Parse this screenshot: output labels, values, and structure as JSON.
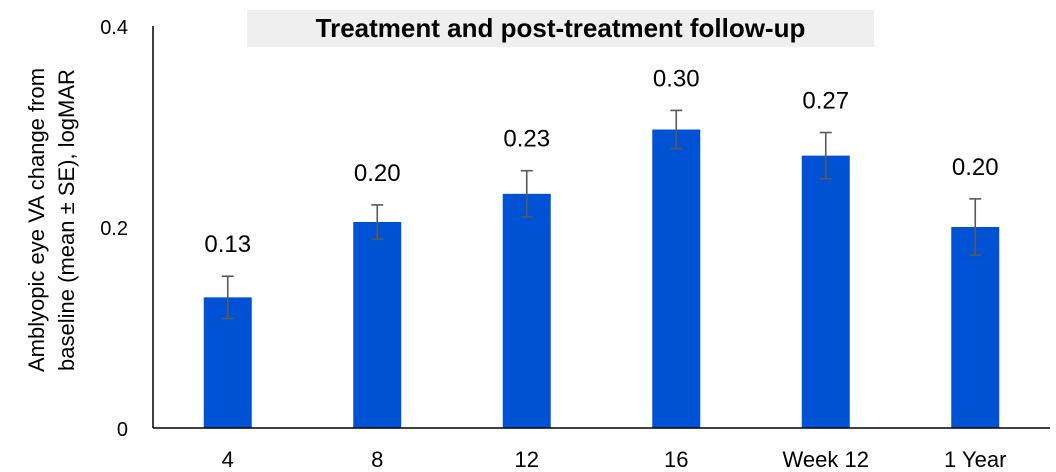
{
  "chart_data": {
    "type": "bar",
    "title": "Treatment and post-treatment follow-up",
    "ylabel_lines": [
      "Amblyopic eye VA change from",
      "baseline (mean ± SE), logMAR"
    ],
    "xlabel": "",
    "categories": [
      "4",
      "8",
      "12",
      "16",
      "Week 12",
      "1 Year"
    ],
    "values": [
      0.13,
      0.205,
      0.233,
      0.297,
      0.271,
      0.2
    ],
    "data_labels": [
      "0.13",
      "0.20",
      "0.23",
      "0.30",
      "0.27",
      "0.20"
    ],
    "error": [
      0.021,
      0.017,
      0.023,
      0.019,
      0.023,
      0.028
    ],
    "ylim": [
      0,
      0.4
    ],
    "yticks": [
      0,
      0.2,
      0.4
    ],
    "ytick_labels": [
      "0",
      "0.2",
      "0.4"
    ],
    "grid": false,
    "legend": "none",
    "bar_color": "#0052d4",
    "error_bar_color": "#595959"
  }
}
